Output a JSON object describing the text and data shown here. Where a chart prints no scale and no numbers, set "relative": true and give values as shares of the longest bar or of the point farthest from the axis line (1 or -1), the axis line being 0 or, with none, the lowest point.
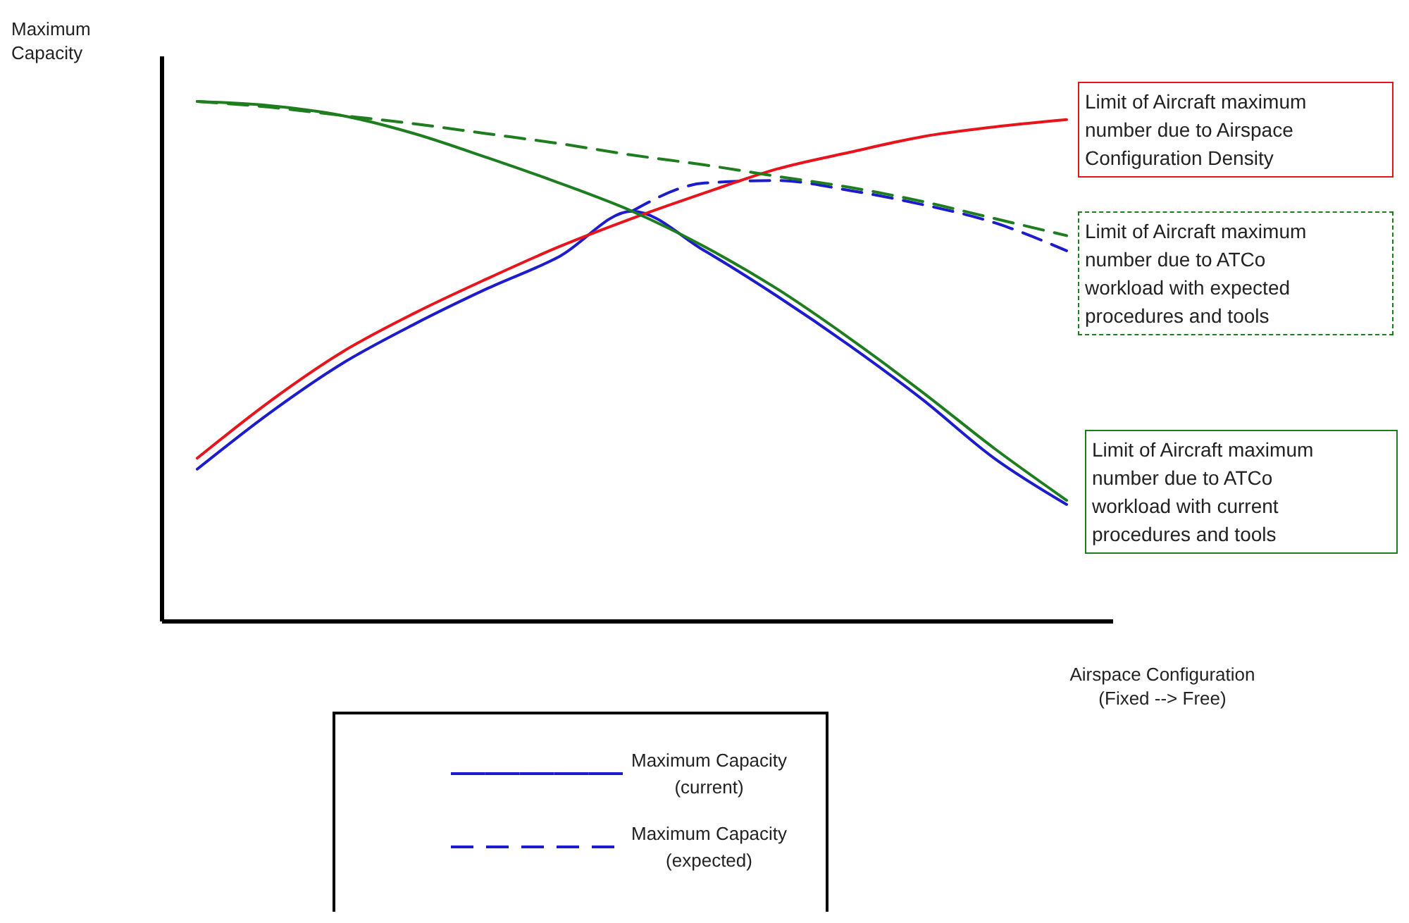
{
  "chart_data": {
    "type": "line",
    "relative": true,
    "xlabel": "Airspace Configuration\n(Fixed --> Free)",
    "ylabel": "Maximum\nCapacity",
    "categories": [
      null,
      null,
      null,
      null,
      null,
      null,
      null,
      null,
      null,
      null,
      null,
      null,
      null
    ],
    "legend": "bottom",
    "marker": "none",
    "series": [
      {
        "name": "Maximum Capacity\n(current)",
        "color": "#1c1ccc",
        "line_style": "solid",
        "values": [
          0.293,
          0.401,
          0.496,
          0.572,
          0.64,
          0.702,
          0.789,
          0.713,
          0.626,
          0.531,
          0.428,
          0.314,
          0.225
        ]
      },
      {
        "name": "Maximum Capacity\n(expected)",
        "color": "#1c1ccc",
        "line_style": "dashed",
        "values": [
          null,
          null,
          null,
          null,
          null,
          null,
          0.789,
          0.843,
          0.848,
          0.829,
          0.802,
          0.767,
          0.713
        ]
      },
      {
        "name": "Limit of Aircraft maximum number due to Airspace Configuration Density",
        "color": "#e8141c",
        "line_style": "solid",
        "values": [
          0.314,
          0.423,
          0.518,
          0.593,
          0.659,
          0.721,
          0.775,
          0.824,
          0.87,
          0.902,
          0.932,
          0.951,
          0.965
        ]
      },
      {
        "name": "Limit of Aircraft maximum number due to ATCo workload with current procedures and tools",
        "color": "#1e7d1e",
        "line_style": "solid",
        "values": [
          1,
          0.992,
          0.973,
          0.938,
          0.892,
          0.843,
          0.789,
          0.721,
          0.64,
          0.545,
          0.442,
          0.333,
          0.233
        ]
      },
      {
        "name": "Limit of Aircraft maximum number due to ATCo workload with expected procedures and tools",
        "color": "#1e7d1e",
        "line_style": "dashed",
        "values": [
          1,
          0.989,
          0.973,
          0.957,
          0.938,
          0.919,
          0.897,
          0.878,
          0.856,
          0.835,
          0.808,
          0.775,
          0.742
        ]
      }
    ]
  }
}
